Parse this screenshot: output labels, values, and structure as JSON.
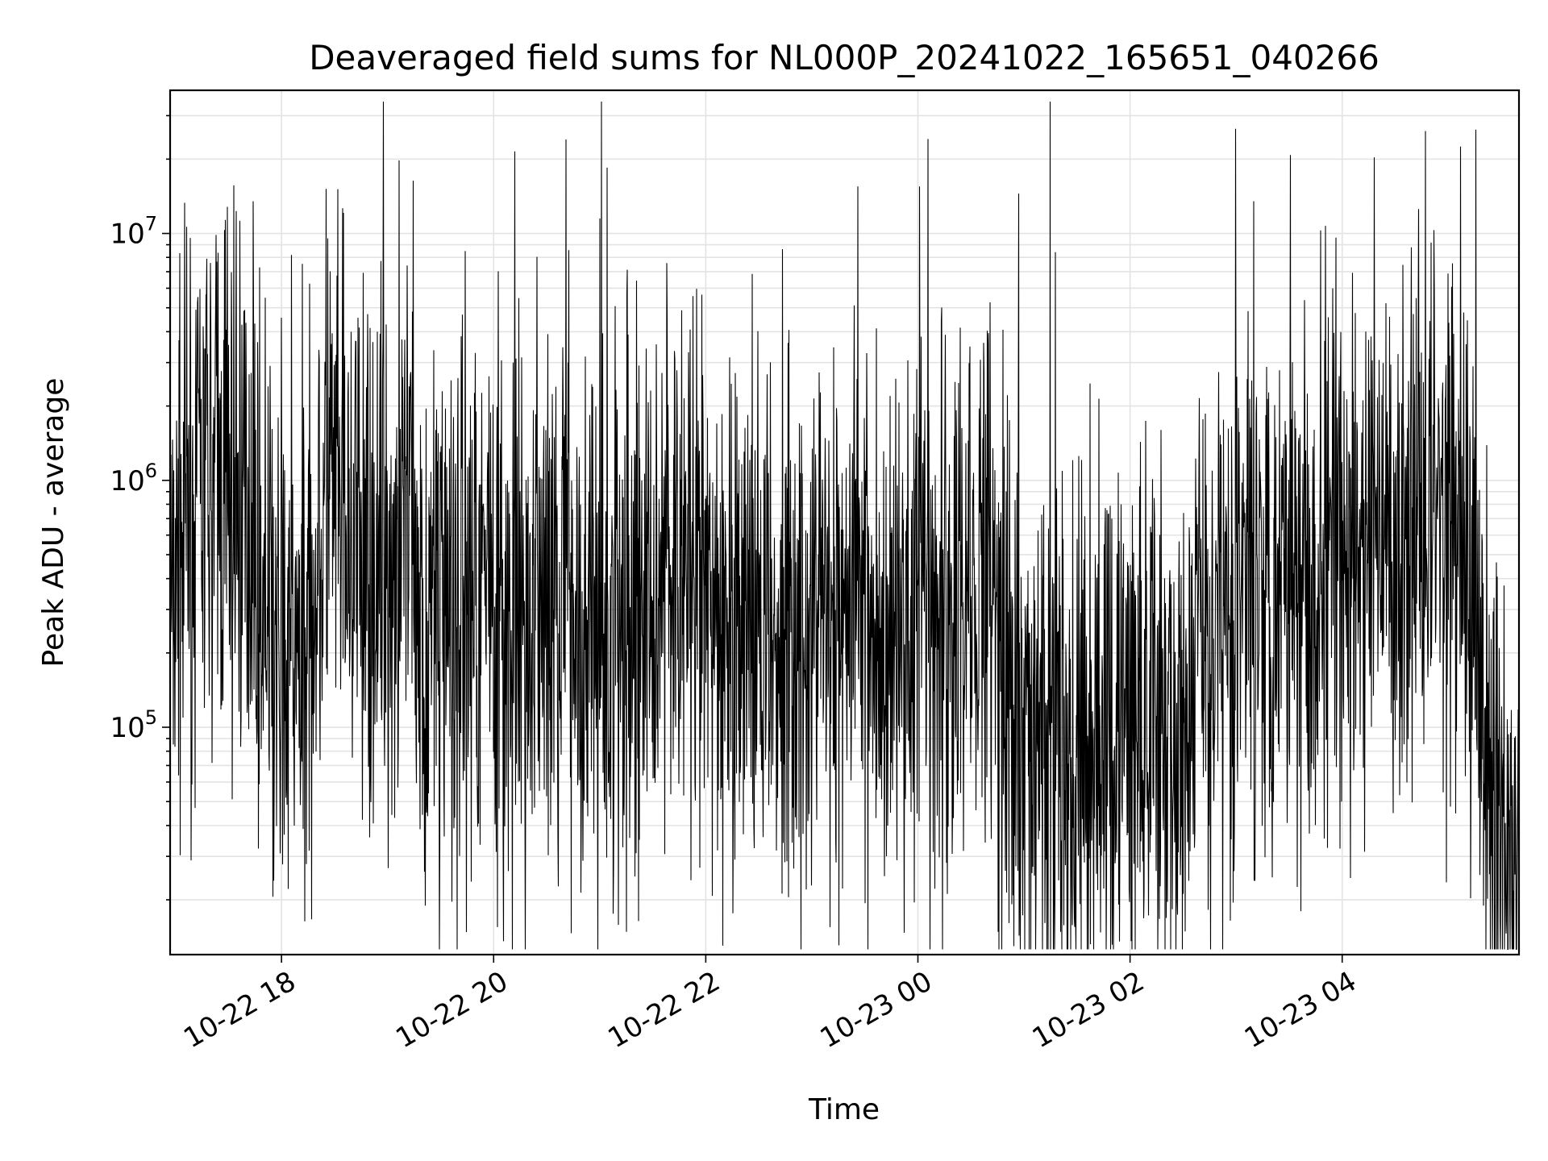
{
  "chart_data": {
    "type": "line",
    "title": "Deaveraged field sums for NL000P_20241022_165651_040266",
    "xlabel": "Time",
    "ylabel": "Peak ADU - average",
    "x_scale": "time",
    "y_scale": "log",
    "xlim": [
      "2024-10-22 16:57",
      "2024-10-23 05:40"
    ],
    "ylim": [
      12000,
      38000000
    ],
    "x_ticks": [
      "10-22 18",
      "10-22 20",
      "10-22 22",
      "10-23 00",
      "10-23 02",
      "10-23 04"
    ],
    "y_ticks": [
      {
        "value": 100000,
        "base": "10",
        "exp": "5"
      },
      {
        "value": 1000000,
        "base": "10",
        "exp": "6"
      },
      {
        "value": 10000000,
        "base": "10",
        "exp": "7"
      }
    ],
    "grid": true,
    "series": [
      {
        "color": "#000000",
        "summary": "dense noisy per-frame signal, values mostly between 5e4 and 2e7",
        "x": [
          "2024-10-22 16:57",
          "2024-10-22 17:10",
          "2024-10-22 17:25",
          "2024-10-22 17:40",
          "2024-10-22 17:55",
          "2024-10-22 18:10",
          "2024-10-22 18:25",
          "2024-10-22 18:40",
          "2024-10-22 18:55",
          "2024-10-22 19:10",
          "2024-10-22 19:25",
          "2024-10-22 19:40",
          "2024-10-22 19:55",
          "2024-10-22 20:10",
          "2024-10-22 20:25",
          "2024-10-22 20:40",
          "2024-10-22 20:55",
          "2024-10-22 21:10",
          "2024-10-22 21:25",
          "2024-10-22 21:40",
          "2024-10-22 21:55",
          "2024-10-22 22:10",
          "2024-10-22 22:25",
          "2024-10-22 22:40",
          "2024-10-22 22:55",
          "2024-10-22 23:10",
          "2024-10-22 23:25",
          "2024-10-22 23:40",
          "2024-10-22 23:55",
          "2024-10-23 00:10",
          "2024-10-23 00:25",
          "2024-10-23 00:40",
          "2024-10-23 00:55",
          "2024-10-23 01:10",
          "2024-10-23 01:25",
          "2024-10-23 01:40",
          "2024-10-23 01:55",
          "2024-10-23 02:10",
          "2024-10-23 02:25",
          "2024-10-23 02:40",
          "2024-10-23 02:55",
          "2024-10-23 03:10",
          "2024-10-23 03:25",
          "2024-10-23 03:40",
          "2024-10-23 03:55",
          "2024-10-23 04:10",
          "2024-10-23 04:25",
          "2024-10-23 04:40",
          "2024-10-23 04:55",
          "2024-10-23 05:10",
          "2024-10-23 05:25",
          "2024-10-23 05:40"
        ],
        "y": [
          500000,
          700000,
          1000000,
          800000,
          200000,
          150000,
          900000,
          500000,
          400000,
          600000,
          250000,
          300000,
          500000,
          150000,
          300000,
          400000,
          250000,
          200000,
          300000,
          500000,
          300000,
          250000,
          300000,
          200000,
          300000,
          250000,
          400000,
          200000,
          300000,
          200000,
          300000,
          500000,
          100000,
          90000,
          80000,
          90000,
          100000,
          80000,
          90000,
          200000,
          300000,
          400000,
          500000,
          400000,
          500000,
          450000,
          600000,
          700000,
          900000,
          500000,
          50000,
          25000
        ],
        "peaks": [
          {
            "x": "2024-10-22 17:44",
            "y": 13500000
          },
          {
            "x": "2024-10-22 20:12",
            "y": 21500000
          },
          {
            "x": "2024-10-22 21:00",
            "y": 11500000
          },
          {
            "x": "2024-10-22 23:26",
            "y": 15500000
          },
          {
            "x": "2024-10-23 00:01",
            "y": 15500000
          },
          {
            "x": "2024-10-23 00:57",
            "y": 14500000
          },
          {
            "x": "2024-10-23 03:10",
            "y": 13500000
          },
          {
            "x": "2024-10-23 04:47",
            "y": 26000000
          },
          {
            "x": "2024-10-23 05:07",
            "y": 22500000
          }
        ],
        "troughs": [
          {
            "x": "2024-10-22 22:55",
            "y": 37000
          },
          {
            "x": "2024-10-23 05:36",
            "y": 18500
          },
          {
            "x": "2024-10-23 05:40",
            "y": 14500
          }
        ]
      }
    ]
  }
}
